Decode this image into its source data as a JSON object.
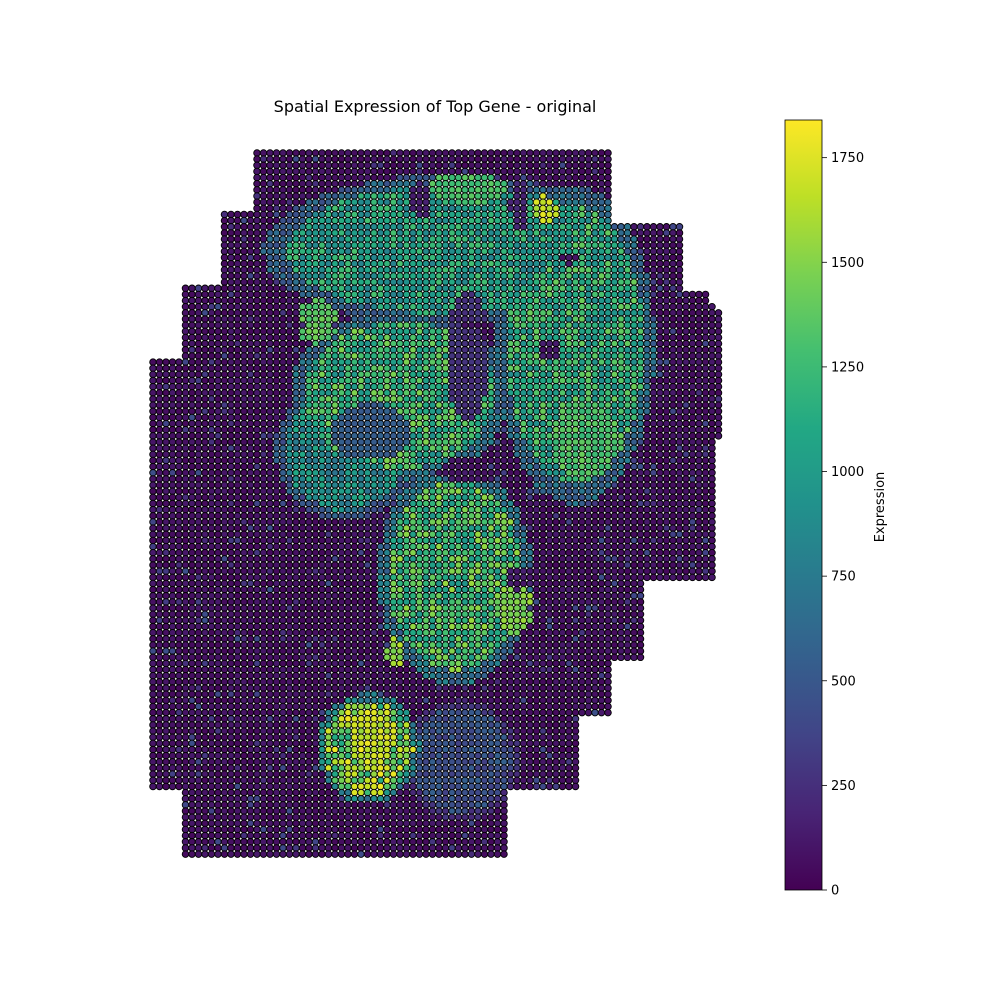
{
  "chart_data": {
    "type": "scatter",
    "title": "Spatial Expression of Top Gene - original",
    "colorbar": {
      "label": "Expression",
      "colormap": "viridis",
      "range": [
        0,
        1840
      ],
      "ticks": [
        0,
        250,
        500,
        750,
        1000,
        1250,
        1500,
        1750
      ],
      "tick_labels": [
        "0",
        "250",
        "500",
        "750",
        "1000",
        "1250",
        "1500",
        "1750"
      ]
    },
    "axes_visible": false,
    "marker": {
      "shape": "circle",
      "edge_color": "#000000"
    },
    "spot_grid": {
      "pitch_x": 6.5,
      "pitch_y": 6.15
    },
    "tissue_outline": [
      [
        252,
        150
      ],
      [
        614,
        150
      ],
      [
        614,
        222
      ],
      [
        676,
        222
      ],
      [
        686,
        232
      ],
      [
        686,
        294
      ],
      [
        708,
        294
      ],
      [
        722,
        318
      ],
      [
        722,
        440
      ],
      [
        716,
        440
      ],
      [
        716,
        582
      ],
      [
        644,
        582
      ],
      [
        644,
        658
      ],
      [
        612,
        658
      ],
      [
        612,
        718
      ],
      [
        576,
        718
      ],
      [
        576,
        792
      ],
      [
        506,
        792
      ],
      [
        506,
        858
      ],
      [
        180,
        858
      ],
      [
        180,
        790
      ],
      [
        150,
        790
      ],
      [
        150,
        360
      ],
      [
        184,
        360
      ],
      [
        184,
        288
      ],
      [
        220,
        288
      ],
      [
        220,
        214
      ],
      [
        252,
        214
      ]
    ],
    "expression_regions": [
      {
        "center": [
          448,
          250
        ],
        "radius": [
          185,
          75
        ],
        "value": 1050
      },
      {
        "center": [
          575,
          345
        ],
        "radius": [
          80,
          160
        ],
        "value": 1150
      },
      {
        "center": [
          400,
          395
        ],
        "radius": [
          110,
          85
        ],
        "value": 1200
      },
      {
        "center": [
          345,
          450
        ],
        "radius": [
          70,
          70
        ],
        "value": 900
      },
      {
        "center": [
          455,
          575
        ],
        "radius": [
          78,
          110
        ],
        "value": 1250
      },
      {
        "center": [
          368,
          748
        ],
        "radius": [
          52,
          55
        ],
        "value": 1450
      },
      {
        "center": [
          460,
          760
        ],
        "radius": [
          60,
          60
        ],
        "value": 450
      }
    ],
    "hotspots": [
      {
        "center": [
          545,
          210
        ],
        "radius": [
          12,
          15
        ],
        "value": 1780
      },
      {
        "center": [
          372,
          738
        ],
        "radius": [
          22,
          32
        ],
        "value": 1760
      },
      {
        "center": [
          515,
          608
        ],
        "radius": [
          18,
          26
        ],
        "value": 1580
      },
      {
        "center": [
          318,
          322
        ],
        "radius": [
          22,
          22
        ],
        "value": 1450
      },
      {
        "center": [
          395,
          652
        ],
        "radius": [
          10,
          14
        ],
        "value": 1650
      },
      {
        "center": [
          585,
          440
        ],
        "radius": [
          32,
          40
        ],
        "value": 1380
      },
      {
        "center": [
          468,
          188
        ],
        "radius": [
          42,
          15
        ],
        "value": 1380
      }
    ],
    "gaps": [
      {
        "center": [
          420,
          200
        ],
        "radius": [
          9,
          20
        ],
        "value": 120
      },
      {
        "center": [
          520,
          205
        ],
        "radius": [
          10,
          25
        ],
        "value": 150
      },
      {
        "center": [
          548,
          350
        ],
        "radius": [
          10,
          12
        ],
        "value": 80
      },
      {
        "center": [
          570,
          258
        ],
        "radius": [
          12,
          6
        ],
        "value": 80
      },
      {
        "center": [
          468,
          355
        ],
        "radius": [
          22,
          65
        ],
        "value": 220
      },
      {
        "center": [
          478,
          470
        ],
        "radius": [
          40,
          14
        ],
        "value": 80
      },
      {
        "center": [
          372,
          432
        ],
        "radius": [
          40,
          28
        ],
        "value": 500
      },
      {
        "center": [
          520,
          578
        ],
        "radius": [
          14,
          12
        ],
        "value": 100
      }
    ]
  }
}
